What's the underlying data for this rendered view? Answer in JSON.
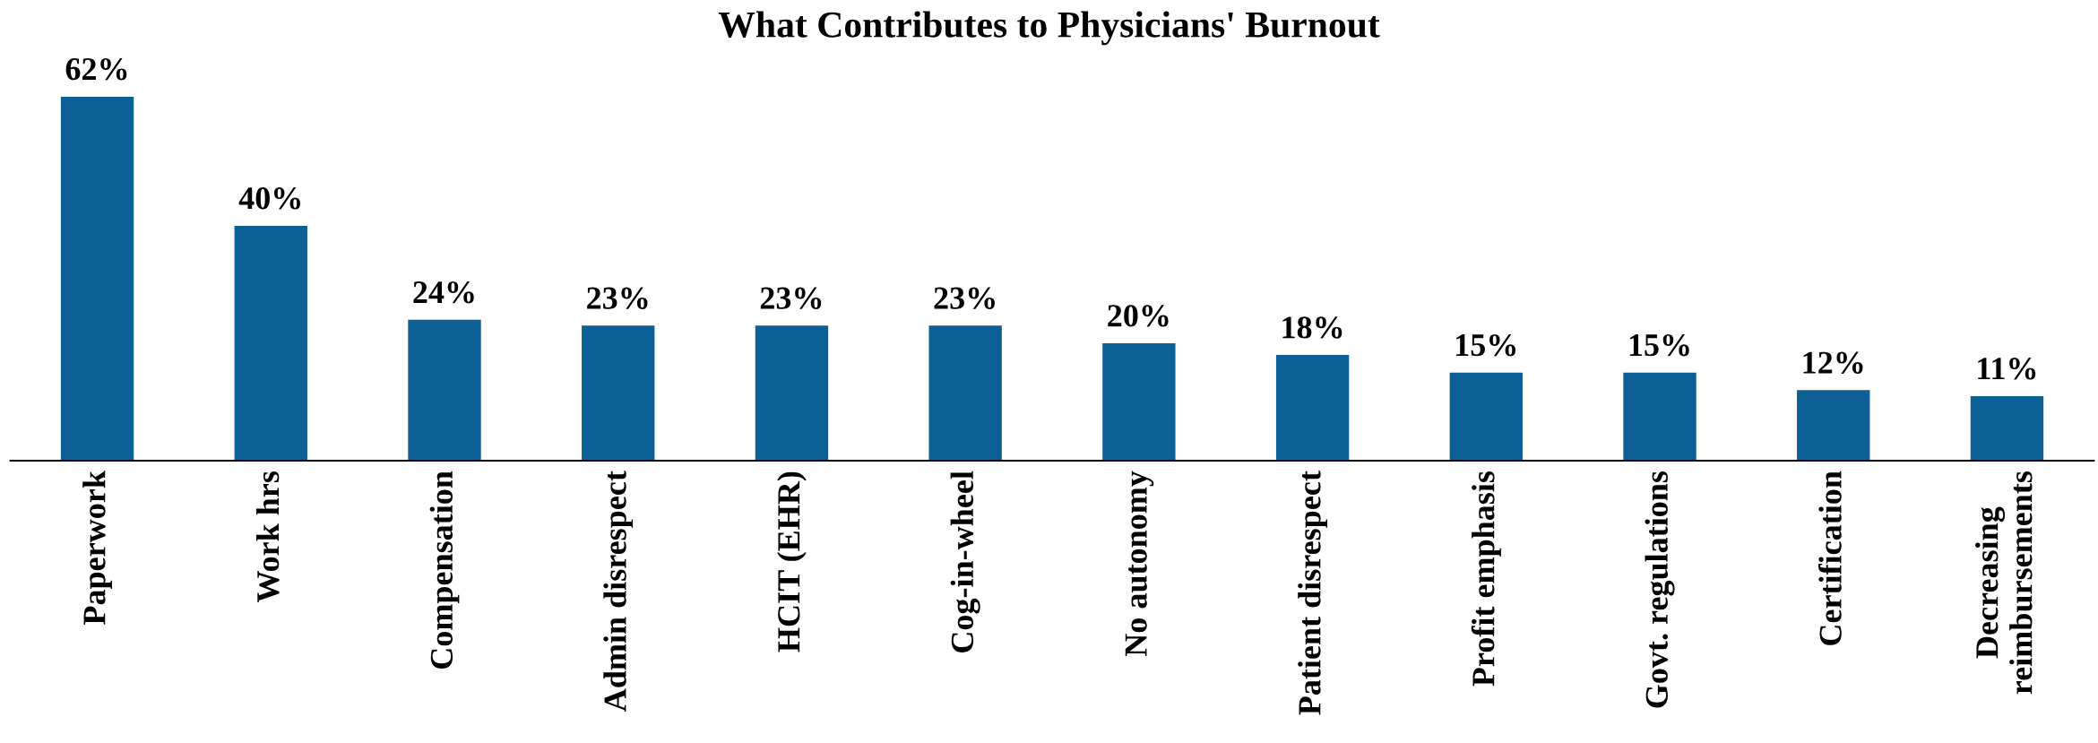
{
  "chart_data": {
    "type": "bar",
    "title": "What Contributes to Physicians' Burnout",
    "categories": [
      "Paperwork",
      "Work hrs",
      "Compensation",
      "Admin disrespect",
      "HCIT (EHR)",
      "Cog-in-wheel",
      "No autonomy",
      "Patient disrespect",
      "Profit emphasis",
      "Govt. regulations",
      "Certification",
      "Decreasing\nreimbursements"
    ],
    "values": [
      62,
      40,
      24,
      23,
      23,
      23,
      20,
      18,
      15,
      15,
      12,
      11
    ],
    "value_labels": [
      "62%",
      "40%",
      "24%",
      "23%",
      "23%",
      "23%",
      "20%",
      "18%",
      "15%",
      "15%",
      "12%",
      "11%"
    ],
    "color": "#0d6095",
    "grid": false,
    "legend": false,
    "tick_labels": "x"
  }
}
